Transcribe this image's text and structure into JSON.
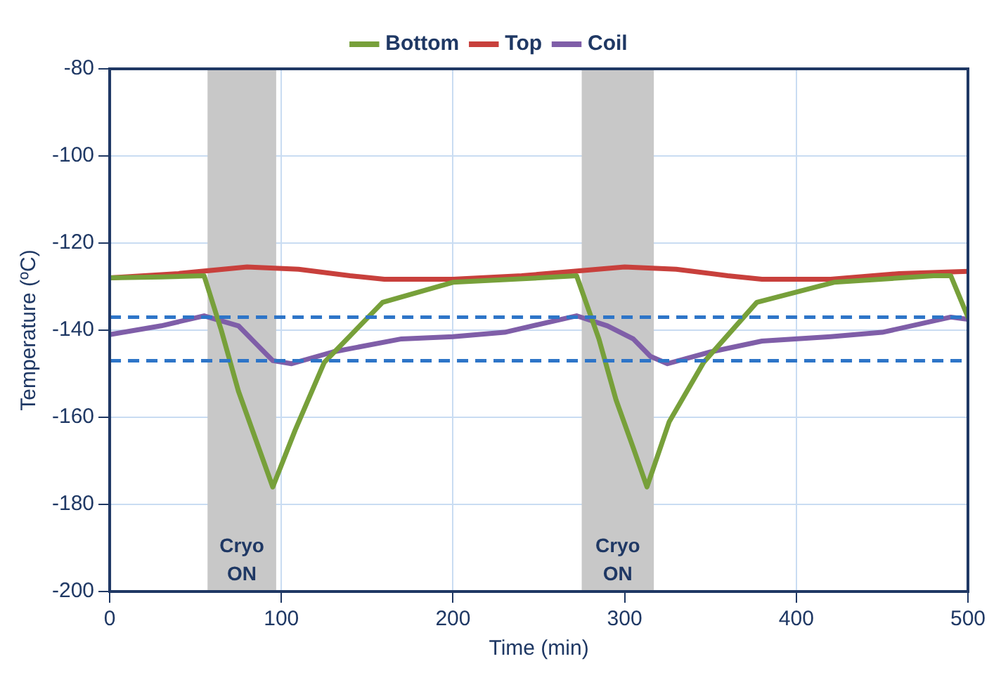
{
  "chart_data": {
    "type": "line",
    "xlabel": "Time (min)",
    "ylabel": "Temperature (ºC)",
    "xlim": [
      0,
      500
    ],
    "xticks": [
      0,
      100,
      200,
      300,
      400,
      500
    ],
    "ylim": [
      -200,
      -80
    ],
    "yticks": [
      -200,
      -180,
      -160,
      -140,
      -120,
      -100,
      -80
    ],
    "grid": true,
    "legend": "top",
    "marker": "none",
    "line_style": "solid",
    "series": [
      {
        "name": "Bottom",
        "color": "#77a03a",
        "x": [
          0,
          30,
          55,
          65,
          75,
          85,
          95,
          108,
          125,
          159,
          200,
          250,
          272,
          285,
          295,
          305,
          313,
          326,
          346,
          377,
          422,
          480,
          490,
          500
        ],
        "values": [
          -128,
          -127.8,
          -127.5,
          -140,
          -154,
          -165,
          -176,
          -163,
          -147.4,
          -133.6,
          -129,
          -128,
          -127.5,
          -142,
          -156,
          -167,
          -176,
          -161,
          -147.4,
          -133.6,
          -129,
          -127.5,
          -127.5,
          -137
        ]
      },
      {
        "name": "Top",
        "color": "#c8403c",
        "x": [
          0,
          40,
          80,
          110,
          140,
          160,
          200,
          240,
          270,
          300,
          330,
          360,
          380,
          420,
          460,
          500
        ],
        "values": [
          -128,
          -127,
          -125.5,
          -126,
          -127.5,
          -128.3,
          -128.3,
          -127.5,
          -126.5,
          -125.5,
          -126,
          -127.5,
          -128.3,
          -128.3,
          -127,
          -126.5
        ]
      },
      {
        "name": "Coil",
        "color": "#7f5ea8",
        "x": [
          0,
          30,
          55,
          75,
          85,
          95,
          106,
          130,
          170,
          200,
          230,
          272,
          290,
          305,
          315,
          325,
          350,
          380,
          420,
          450,
          490,
          500
        ],
        "values": [
          -141,
          -139,
          -136.7,
          -139,
          -143,
          -147,
          -147.7,
          -145,
          -142,
          -141.5,
          -140.5,
          -136.7,
          -139,
          -142,
          -146,
          -147.7,
          -145,
          -142.5,
          -141.5,
          -140.5,
          -137,
          -137.5
        ]
      }
    ],
    "ref_lines": [
      {
        "axis": "y",
        "value": -137,
        "color": "#2e75c8",
        "line_style": "dashed"
      },
      {
        "axis": "y",
        "value": -147,
        "color": "#2e75c8",
        "line_style": "dashed"
      }
    ],
    "bands": [
      {
        "axis": "x",
        "from": 57,
        "to": 97,
        "label": "Cryo ON",
        "color": "#c8c8c8"
      },
      {
        "axis": "x",
        "from": 275,
        "to": 317,
        "label": "Cryo ON",
        "color": "#c8c8c8"
      }
    ]
  }
}
